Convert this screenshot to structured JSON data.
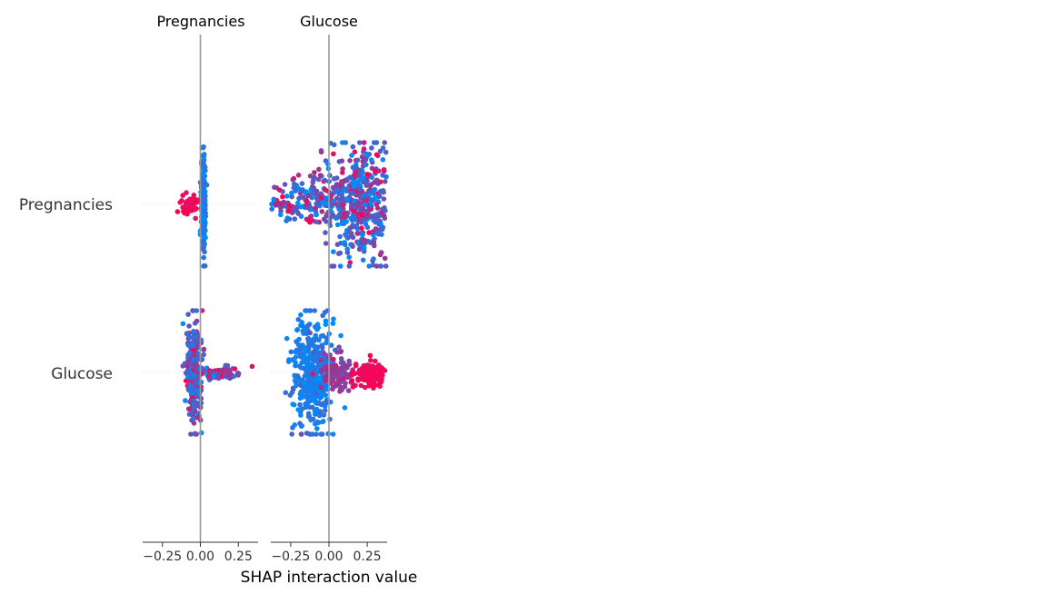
{
  "chart_data": {
    "type": "scatter",
    "chart_kind": "SHAP interaction beeswarm summary plot",
    "xlabel": "SHAP interaction value",
    "columns": [
      "Pregnancies",
      "Glucose"
    ],
    "rows": [
      "Pregnancies",
      "Glucose"
    ],
    "x_ticks": [
      -0.25,
      0.0,
      0.25
    ],
    "x_tick_labels": [
      "−0.25",
      "0.00",
      "0.25"
    ],
    "xlim": [
      -0.38,
      0.38
    ],
    "zero_line": 0.0,
    "color_scale": {
      "low": "#008bfb",
      "high": "#ff0052",
      "meaning": "feature value (low to high)"
    },
    "panels": [
      {
        "row": "Pregnancies",
        "column": "Pregnancies",
        "clusters": [
          {
            "center": 0.02,
            "spread_x": 0.008,
            "spread_y": 0.95,
            "count": 230,
            "color_value": 0.1,
            "color_spread": 0.08
          },
          {
            "center": -0.07,
            "spread_x": 0.028,
            "spread_y": 0.18,
            "count": 55,
            "color_value": 0.95,
            "color_spread": 0.05
          }
        ]
      },
      {
        "row": "Pregnancies",
        "column": "Glucose",
        "clusters": [
          {
            "center": 0.2,
            "spread_x": 0.12,
            "spread_y": 1.0,
            "count": 430,
            "color_value": 0.35,
            "color_spread": 0.35
          },
          {
            "center": -0.1,
            "spread_x": 0.16,
            "spread_y": 0.45,
            "count": 170,
            "color_value": 0.35,
            "color_spread": 0.35
          },
          {
            "center": -0.32,
            "spread_x": 0.05,
            "spread_y": 0.08,
            "count": 25,
            "color_value": 0.6,
            "color_spread": 0.3
          }
        ]
      },
      {
        "row": "Glucose",
        "column": "Pregnancies",
        "clusters": [
          {
            "center": -0.04,
            "spread_x": 0.025,
            "spread_y": 0.95,
            "count": 280,
            "color_value": 0.35,
            "color_spread": 0.3
          },
          {
            "center": 0.14,
            "spread_x": 0.07,
            "spread_y": 0.12,
            "count": 70,
            "color_value": 0.5,
            "color_spread": 0.3
          }
        ]
      },
      {
        "row": "Glucose",
        "column": "Glucose",
        "clusters": [
          {
            "center": -0.1,
            "spread_x": 0.07,
            "spread_y": 1.0,
            "count": 400,
            "color_value": 0.12,
            "color_spread": 0.12
          },
          {
            "center": 0.05,
            "spread_x": 0.05,
            "spread_y": 0.3,
            "count": 120,
            "color_value": 0.6,
            "color_spread": 0.1
          },
          {
            "center": 0.28,
            "spread_x": 0.06,
            "spread_y": 0.22,
            "count": 150,
            "color_value": 0.95,
            "color_spread": 0.05
          }
        ]
      }
    ]
  }
}
